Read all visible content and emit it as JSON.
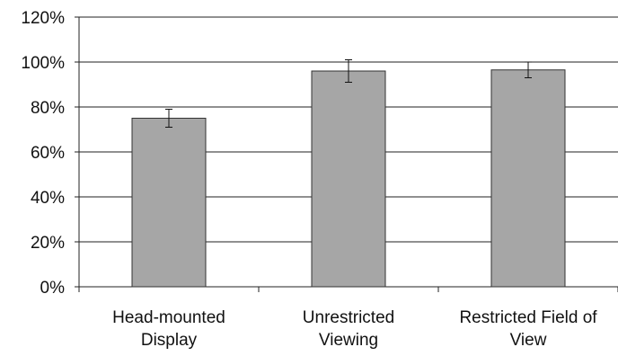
{
  "chart_data": {
    "type": "bar",
    "categories": [
      [
        "Head-mounted",
        "Display"
      ],
      [
        "Unrestricted",
        "Viewing"
      ],
      [
        "Restricted Field of",
        "View"
      ]
    ],
    "values": [
      75,
      96,
      96.5
    ],
    "error": [
      4,
      5,
      3.5
    ],
    "y_unit": "%",
    "yticks": [
      "0%",
      "20%",
      "40%",
      "60%",
      "80%",
      "100%",
      "120%"
    ],
    "ylim": [
      0,
      120
    ],
    "ytick_step": 20,
    "grid": true,
    "legend": "none",
    "colors": {
      "bar_fill": "#a6a6a6",
      "bar_stroke": "#333333",
      "grid": "#222222",
      "axis": "#222222",
      "error_bar": "#111111"
    }
  }
}
